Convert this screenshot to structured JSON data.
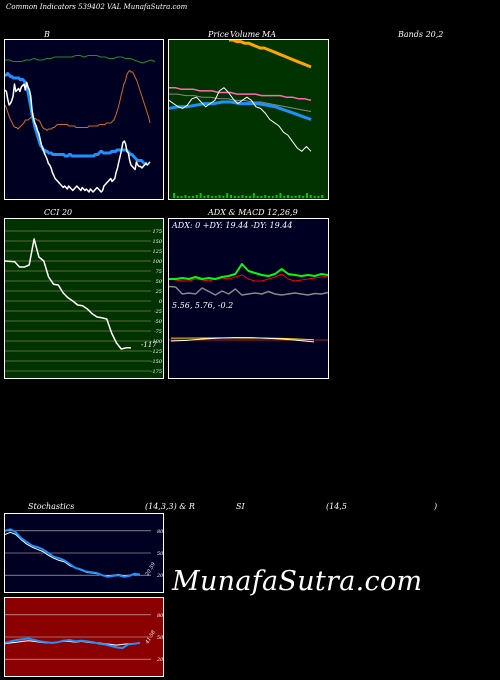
{
  "header": {
    "title": "Common Indicators 539402 VAL MunafaSutra.com"
  },
  "panels": {
    "bb": {
      "label": "B",
      "bg": "#000022",
      "chart_data": {
        "type": "line",
        "title": "B",
        "ylim": [
          0,
          100
        ],
        "series": [
          {
            "color": "#ffffff",
            "values": [
              70,
              69,
              64,
              60,
              61,
              63,
              66,
              74,
              69,
              70,
              71,
              69,
              72,
              73,
              74,
              70,
              75,
              72,
              70,
              66,
              56,
              51,
              48,
              46,
              43,
              41,
              37,
              33,
              31,
              28,
              26,
              24,
              21,
              20,
              18,
              15,
              13,
              11,
              10,
              9,
              8,
              7,
              6,
              5,
              6,
              5,
              4,
              6,
              5,
              4,
              3,
              4,
              5,
              6,
              5,
              4,
              3,
              5,
              4,
              3,
              4,
              3,
              2,
              4,
              3,
              2,
              3,
              4,
              5,
              4,
              3,
              2,
              3,
              6,
              7,
              8,
              9,
              10,
              11,
              9,
              10,
              11,
              15,
              18,
              22,
              26,
              30,
              35,
              36,
              34,
              29,
              28,
              23,
              20,
              19,
              18,
              17,
              22,
              20,
              19,
              19,
              18,
              19,
              20,
              21,
              20,
              21,
              22
            ]
          },
          {
            "color": "#228B22",
            "values": [
              90,
              90,
              89,
              89,
              89,
              90,
              90,
              91,
              90,
              90,
              91,
              91,
              92,
              92,
              92,
              92,
              92,
              93,
              93,
              92,
              93,
              93,
              93,
              92,
              92,
              91,
              91,
              92,
              92,
              91,
              91,
              90,
              89,
              88,
              89,
              90,
              89
            ]
          },
          {
            "color": "#1E90FF",
            "values": [
              80,
              80,
              81,
              80,
              79,
              79,
              78,
              78,
              78,
              78,
              78,
              77,
              77,
              77,
              76,
              75,
              72,
              68,
              63,
              58,
              53,
              49,
              45,
              42,
              39,
              36,
              33,
              32,
              30,
              30,
              29,
              29,
              28,
              28,
              28,
              27,
              27,
              27,
              27,
              27,
              27,
              27,
              27,
              27,
              26,
              26,
              26,
              27,
              27,
              26,
              26,
              26,
              26,
              26,
              26,
              26,
              26,
              26,
              26,
              26,
              26,
              26,
              26,
              26,
              26,
              26,
              27,
              27,
              27,
              28,
              29,
              29,
              28,
              28,
              28,
              28,
              28,
              28,
              29,
              29,
              29,
              29,
              30,
              30,
              30,
              30,
              30,
              30,
              30,
              30,
              29,
              28,
              27,
              27,
              26,
              25,
              24,
              23,
              23,
              23,
              23,
              22,
              21,
              21,
              21
            ]
          },
          {
            "color": "#D2691E",
            "values": [
              60,
              58,
              55,
              52,
              50,
              48,
              46,
              45,
              45,
              44,
              45,
              46,
              47,
              48,
              50,
              50,
              50,
              51,
              52,
              51,
              51,
              51,
              50,
              50,
              49,
              47,
              45,
              44,
              44,
              43,
              44,
              44,
              44,
              45,
              45,
              46,
              47,
              47,
              47,
              47,
              47,
              47,
              47,
              47,
              46,
              46,
              46,
              46,
              46,
              45,
              45,
              45,
              45,
              45,
              45,
              45,
              45,
              45,
              46,
              46,
              46,
              46,
              46,
              46,
              46,
              47,
              47,
              47,
              47,
              47,
              48,
              48,
              48,
              48,
              49,
              50,
              52,
              55,
              58,
              62,
              66,
              70,
              74,
              76,
              80,
              82,
              83,
              82,
              82,
              80,
              78,
              76,
              73,
              70,
              67,
              64,
              61,
              58,
              55,
              52,
              48
            ]
          }
        ]
      }
    },
    "ma": {
      "label_parts": [
        "Price",
        "Volume",
        "MA"
      ],
      "bg": "#003300",
      "chart_data": {
        "type": "line",
        "title": "Price Volume MA",
        "series": [
          {
            "color": "#ffffff",
            "values": [
              62,
              60,
              58,
              57,
              59,
              63,
              64,
              61,
              58,
              60,
              62,
              68,
              70,
              67,
              63,
              60,
              62,
              64,
              62,
              58,
              57,
              54,
              50,
              48,
              46,
              42,
              40,
              36,
              32,
              30,
              33,
              30
            ]
          },
          {
            "color": "#FFA500",
            "values": [
              100,
              100,
              99,
              99,
              98,
              98,
              97,
              96,
              95,
              95,
              94,
              93,
              92,
              91,
              90,
              89,
              88,
              87,
              86,
              85,
              84,
              83
            ]
          },
          {
            "color": "#FF69B4",
            "values": [
              70,
              70,
              69,
              69,
              69,
              68,
              68,
              68,
              67,
              67,
              67,
              66,
              66,
              66,
              66,
              65,
              65,
              65,
              65,
              64,
              64,
              63,
              63,
              62
            ]
          },
          {
            "color": "#1E90FF",
            "values": [
              57,
              58,
              58,
              59,
              60,
              60,
              61,
              61,
              60,
              60,
              60,
              59,
              58,
              56,
              54,
              52,
              50
            ]
          },
          {
            "color": "#888888",
            "values": [
              66,
              66,
              65,
              65,
              64,
              64,
              63,
              63,
              62,
              62,
              61,
              61,
              60,
              59,
              58,
              57,
              56,
              55
            ]
          }
        ]
      }
    },
    "bands": {
      "label": "Bands 20,2"
    },
    "cci": {
      "label": "CCI 20",
      "bg": "#003300",
      "last_value_label": "-117",
      "ticks": [
        "175",
        "150",
        "125",
        "100",
        "75",
        "50",
        "25",
        "0",
        "-25",
        "-50",
        "-75",
        "-100",
        "-125",
        "-150",
        "-175"
      ],
      "chart_data": {
        "type": "line",
        "title": "CCI 20",
        "ylim": [
          -175,
          175
        ],
        "series": [
          {
            "color": "#ffffff",
            "values": [
              100,
              99,
              98,
              85,
              85,
              90,
              155,
              110,
              100,
              60,
              42,
              40,
              20,
              8,
              0,
              -10,
              -12,
              -20,
              -32,
              -40,
              -42,
              -45,
              -80,
              -105,
              -120,
              -117,
              -117
            ]
          }
        ]
      }
    },
    "adx": {
      "label": "ADX & MACD 12,26,9",
      "bg": "#000022",
      "readout": "ADX: 0  +DY: 19.44  -DY: 19.44",
      "chart_data": {
        "type": "line",
        "title": "ADX",
        "series": [
          {
            "color": "#00FF00",
            "values": [
              40,
              40,
              41,
              40,
              42,
              40,
              41,
              40,
              42,
              43,
              45,
              55,
              48,
              46,
              44,
              43,
              45,
              50,
              45,
              44,
              43,
              44,
              43,
              45,
              44
            ]
          },
          {
            "color": "#FF0000",
            "values": [
              40,
              39,
              38,
              38,
              40,
              39,
              38,
              40,
              41,
              40,
              42,
              44,
              40,
              38,
              38,
              40,
              42,
              45,
              40,
              38,
              39,
              40,
              41,
              42,
              43
            ]
          },
          {
            "color": "#888888",
            "values": [
              45,
              44,
              30,
              32,
              30,
              42,
              35,
              28,
              36,
              30,
              40,
              28,
              30,
              32,
              30,
              35,
              30,
              28,
              30,
              32,
              30,
              28,
              31,
              30,
              33
            ]
          }
        ]
      }
    },
    "macd": {
      "readout": "5.56,  5.76,  -0.2",
      "chart_data": {
        "type": "line",
        "title": "MACD",
        "series": [
          {
            "name": "",
            "color": "#ffffff",
            "values": [
              5.56,
              5.6,
              5.7,
              5.76,
              5.8,
              5.8,
              5.75,
              5.7,
              5.6,
              5.5
            ]
          },
          {
            "name": "",
            "color": "#FFD700",
            "values": [
              5.76,
              5.76,
              5.77,
              5.78,
              5.78,
              5.77,
              5.76,
              5.74,
              5.7,
              5.65
            ]
          }
        ]
      }
    },
    "stoch": {
      "label_parts": [
        "Stochastics",
        "(14,3,3) & R",
        "SI",
        "(14,5",
        ")"
      ],
      "bg": "#000022",
      "ticks": [
        "80",
        "50",
        "20"
      ],
      "last_value_label": "20.59",
      "chart_data": {
        "type": "line",
        "title": "Stochastics",
        "ylim": [
          0,
          100
        ],
        "series": [
          {
            "color": "#1E90FF",
            "values": [
              80,
              82,
              78,
              70,
              65,
              60,
              58,
              55,
              50,
              45,
              43,
              40,
              35,
              30,
              28,
              25,
              24,
              23,
              20,
              18,
              19,
              20,
              18,
              19,
              22,
              21
            ]
          },
          {
            "color": "#ffffff",
            "values": [
              75,
              78,
              75,
              68,
              62,
              58,
              55,
              52,
              47,
              43,
              40,
              38,
              33,
              30,
              27,
              24,
              23,
              22,
              20,
              19,
              20,
              21,
              19,
              20,
              21,
              20
            ]
          }
        ]
      }
    },
    "rsi": {
      "bg": "#8B0000",
      "ticks": [
        "80",
        "50",
        "20"
      ],
      "last_value_label": "41.58",
      "chart_data": {
        "type": "line",
        "title": "RSI",
        "ylim": [
          0,
          100
        ],
        "series": [
          {
            "color": "#1E90FF",
            "values": [
              42,
              44,
              46,
              47,
              48,
              46,
              44,
              43,
              42,
              43,
              45,
              46,
              44,
              45,
              44,
              43,
              41,
              40,
              38,
              36,
              35,
              40,
              41,
              42
            ]
          },
          {
            "color": "#ffffff",
            "values": [
              41,
              42,
              43,
              44,
              45,
              44,
              43,
              42,
              42,
              43,
              44,
              44,
              43,
              44,
              43,
              42,
              42,
              41,
              40,
              39,
              40,
              41,
              41,
              42
            ]
          }
        ]
      }
    }
  },
  "watermark": "MunafaSutra.com"
}
